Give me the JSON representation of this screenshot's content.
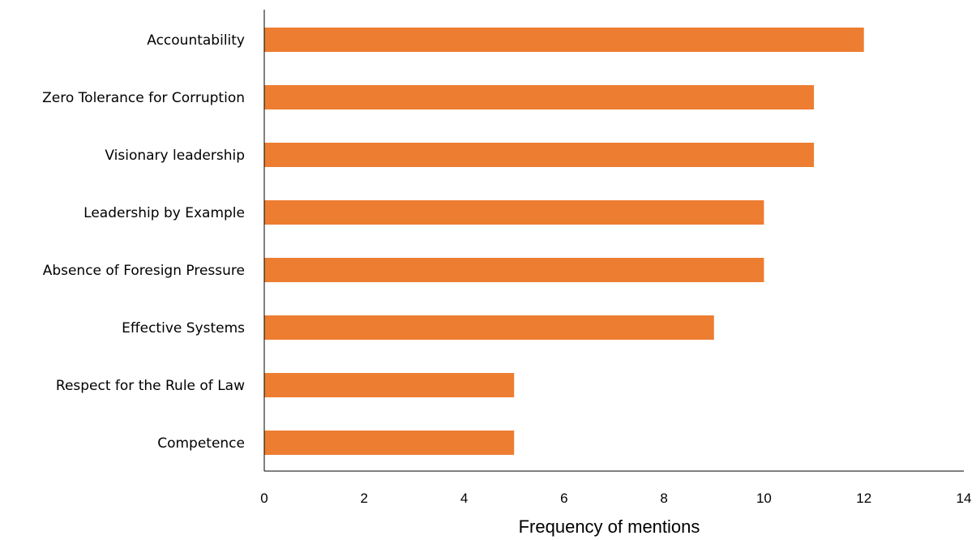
{
  "chart_data": {
    "type": "bar",
    "orientation": "horizontal",
    "categories": [
      "Accountability",
      "Zero Tolerance for Corruption",
      "Visionary leadership",
      "Leadership by Example",
      "Absence of Foresign Pressure",
      "Effective Systems",
      "Respect for the Rule of Law",
      "Competence"
    ],
    "values": [
      12,
      11,
      11,
      10,
      10,
      9,
      5,
      5
    ],
    "title": "",
    "xlabel": "Frequency of mentions",
    "ylabel": "",
    "xlim": [
      0,
      14
    ],
    "xticks": [
      0,
      2,
      4,
      6,
      8,
      10,
      12,
      14
    ],
    "grid": false,
    "legend": "none",
    "bar_color": "#ED7D31",
    "axis_color": "#000000"
  }
}
